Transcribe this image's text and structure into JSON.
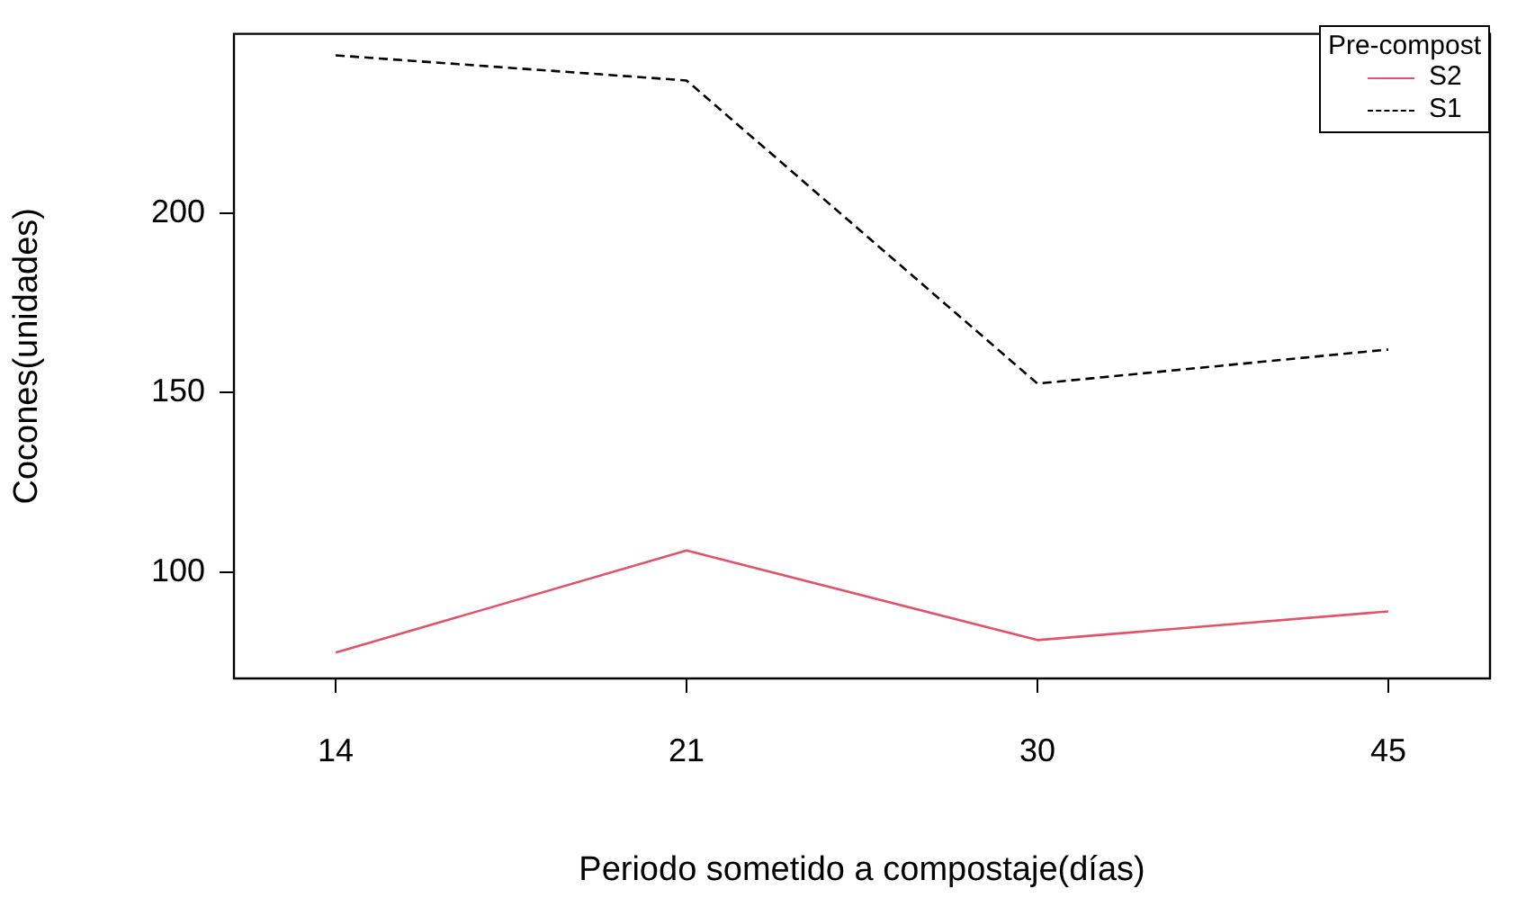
{
  "chart_data": {
    "type": "line",
    "xlabel": "Periodo sometido a compostaje(días)",
    "ylabel": "Cocones(unidades)",
    "legend_title": "Pre-compost",
    "categories": [
      "14",
      "21",
      "30",
      "45"
    ],
    "series": [
      {
        "name": "S2",
        "color": "#df536b",
        "line_style": "solid",
        "values": [
          77.5,
          106,
          81,
          89
        ]
      },
      {
        "name": "S1",
        "color": "#000000",
        "line_style": "dashed",
        "values": [
          244,
          237,
          152.5,
          162
        ]
      }
    ],
    "ylim": [
      70.3,
      250
    ],
    "yticks": [
      100,
      150,
      200
    ],
    "grid": false,
    "legend": "top right",
    "marker": "none"
  }
}
